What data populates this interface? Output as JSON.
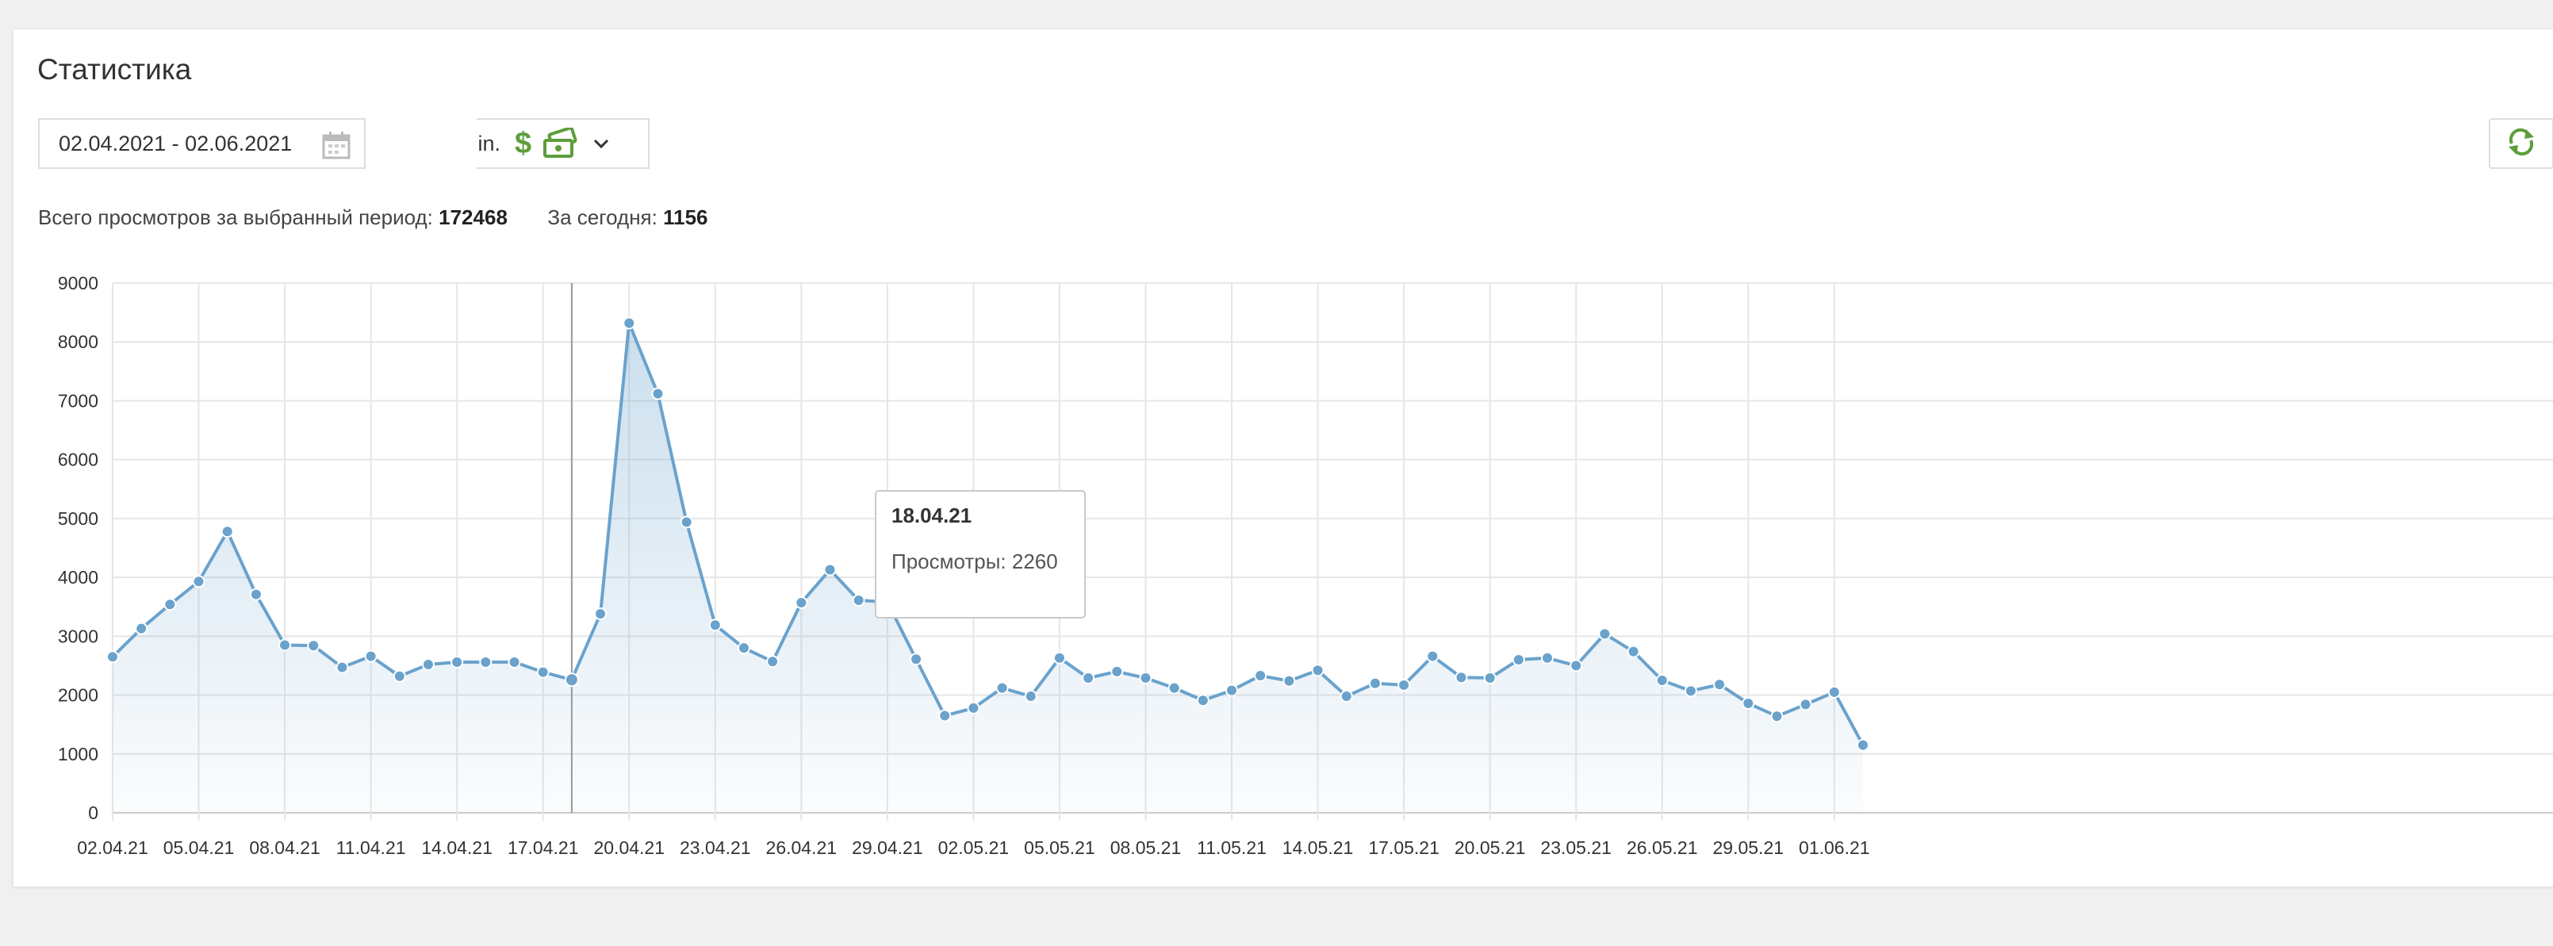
{
  "panel": {
    "title": "Статистика"
  },
  "filters": {
    "date_range": "02.04.2021 - 02.06.2021",
    "site_name_fragment": ".in"
  },
  "stats": {
    "total_label": "Всего просмотров за выбранный период:",
    "total_value": "172468",
    "today_label": "За сегодня:",
    "today_value": "1156"
  },
  "icons": {
    "calendar": "calendar-icon",
    "dollar": "dollar-icon",
    "money": "money-icon",
    "chevron": "chevron-down-icon",
    "refresh": "refresh-icon"
  },
  "colors": {
    "line": "#6aa2cc",
    "accent_green": "#5d9e3c"
  },
  "tooltip": {
    "date": "18.04.21",
    "label": "Просмотры: 2260"
  },
  "chart_data": {
    "type": "area",
    "ylim": [
      0,
      9000
    ],
    "yticks": [
      0,
      1000,
      2000,
      3000,
      4000,
      5000,
      6000,
      7000,
      8000,
      9000
    ],
    "x": [
      "02.04.21",
      "03.04.21",
      "04.04.21",
      "05.04.21",
      "06.04.21",
      "07.04.21",
      "08.04.21",
      "09.04.21",
      "10.04.21",
      "11.04.21",
      "12.04.21",
      "13.04.21",
      "14.04.21",
      "15.04.21",
      "16.04.21",
      "17.04.21",
      "18.04.21",
      "19.04.21",
      "20.04.21",
      "21.04.21",
      "22.04.21",
      "23.04.21",
      "24.04.21",
      "25.04.21",
      "26.04.21",
      "27.04.21",
      "28.04.21",
      "29.04.21",
      "30.04.21",
      "01.05.21",
      "02.05.21",
      "03.05.21",
      "04.05.21",
      "05.05.21",
      "06.05.21",
      "07.05.21",
      "08.05.21",
      "09.05.21",
      "10.05.21",
      "11.05.21",
      "12.05.21",
      "13.05.21",
      "14.05.21",
      "15.05.21",
      "16.05.21",
      "17.05.21",
      "18.05.21",
      "19.05.21",
      "20.05.21",
      "21.05.21",
      "22.05.21",
      "23.05.21",
      "24.05.21",
      "25.05.21",
      "26.05.21",
      "27.05.21",
      "28.05.21",
      "29.05.21",
      "30.05.21",
      "31.05.21",
      "01.06.21",
      "02.06.21"
    ],
    "xtick_labels": [
      "02.04.21",
      "05.04.21",
      "08.04.21",
      "11.04.21",
      "14.04.21",
      "17.04.21",
      "20.04.21",
      "23.04.21",
      "26.04.21",
      "29.04.21",
      "02.05.21",
      "05.05.21",
      "08.05.21",
      "11.05.21",
      "14.05.21",
      "17.05.21",
      "20.05.21",
      "23.05.21",
      "26.05.21",
      "29.05.21",
      "01.06.21"
    ],
    "series": [
      {
        "values": [
          2650,
          3130,
          3540,
          3930,
          4780,
          3710,
          2850,
          2840,
          2470,
          2660,
          2320,
          2520,
          2560,
          2560,
          2560,
          2390,
          2260,
          3380,
          8320,
          7120,
          4940,
          3190,
          2800,
          2570,
          3570,
          4130,
          3610,
          3580,
          2610,
          1650,
          1780,
          2120,
          1980,
          2630,
          2290,
          2400,
          2290,
          2120,
          1910,
          2080,
          2330,
          2240,
          2420,
          1980,
          2200,
          2170,
          2660,
          2300,
          2290,
          2600,
          2630,
          2500,
          3040,
          2740,
          2250,
          2070,
          2180,
          1860,
          1640,
          1840,
          2050,
          1150
        ]
      }
    ],
    "highlight_index": 16,
    "grid": true
  }
}
